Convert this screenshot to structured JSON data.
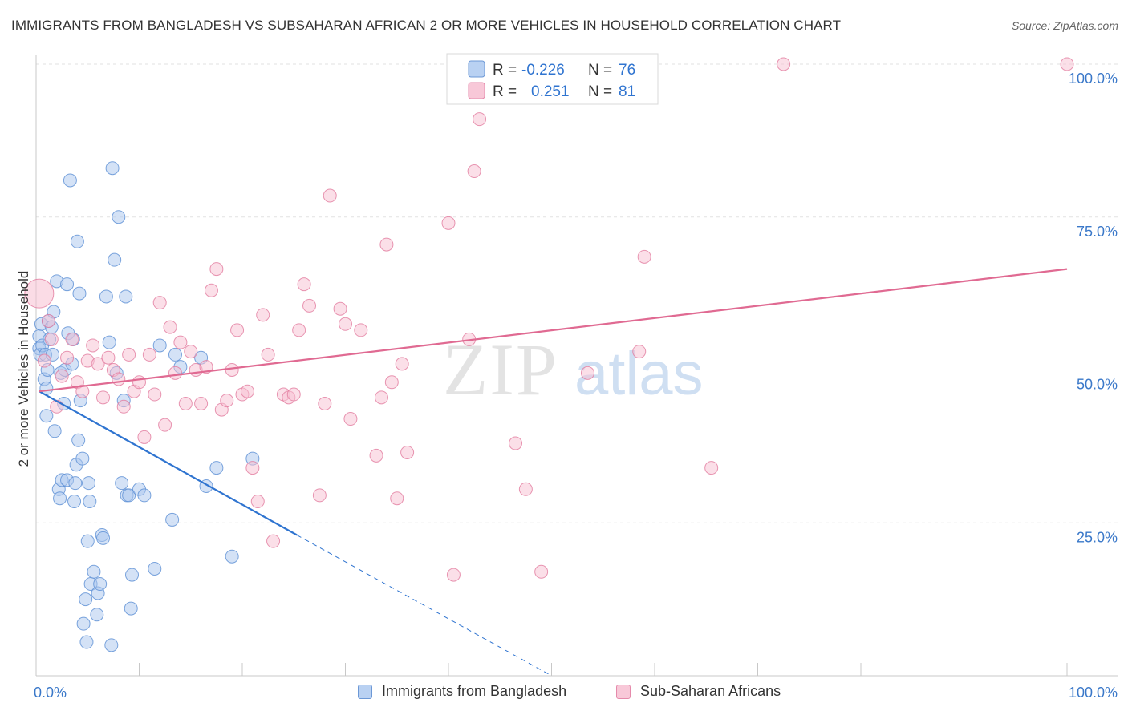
{
  "chart_data": {
    "type": "scatter",
    "title": "IMMIGRANTS FROM BANGLADESH VS SUBSAHARAN AFRICAN 2 OR MORE VEHICLES IN HOUSEHOLD CORRELATION CHART",
    "source": "Source: ZipAtlas.com",
    "xlabel": "",
    "ylabel": "2 or more Vehicles in Household",
    "xlim": [
      0,
      100
    ],
    "ylim": [
      0,
      102
    ],
    "x_tick_labels": {
      "left": "0.0%",
      "right": "100.0%"
    },
    "y_ticks": [
      {
        "value": 25,
        "label": "25.0%"
      },
      {
        "value": 50,
        "label": "50.0%"
      },
      {
        "value": 75,
        "label": "75.0%"
      },
      {
        "value": 100,
        "label": "100.0%"
      }
    ],
    "grid": true,
    "watermark": {
      "zip": "ZIP",
      "atlas": "atlas"
    },
    "legend": {
      "r_label": "R =",
      "n_label": "N =",
      "entries": [
        {
          "r": "-0.226",
          "n": "76"
        },
        {
          "r": "0.251",
          "n": "81"
        }
      ]
    },
    "series": [
      {
        "name": "Immigrants from Bangladesh",
        "color": "#a9c6ee",
        "edge": "#5b8fd4",
        "line_color": "#2f74d0",
        "trend": {
          "x0": 0.3,
          "y0": 46.5,
          "x1": 25.3,
          "y1": 23.0,
          "dash_to_x": 50,
          "dash_to_y": 0
        },
        "points": [
          [
            0.3,
            55.5
          ],
          [
            0.3,
            53.5
          ],
          [
            0.4,
            52.5
          ],
          [
            0.5,
            57.5
          ],
          [
            0.6,
            54.0
          ],
          [
            0.8,
            48.5
          ],
          [
            0.9,
            52.5
          ],
          [
            1.0,
            47.0
          ],
          [
            1.0,
            42.5
          ],
          [
            1.1,
            50.0
          ],
          [
            1.2,
            58.0
          ],
          [
            1.3,
            55.0
          ],
          [
            1.5,
            57.0
          ],
          [
            1.6,
            52.5
          ],
          [
            1.7,
            59.5
          ],
          [
            1.8,
            40.0
          ],
          [
            2.0,
            64.5
          ],
          [
            2.2,
            30.5
          ],
          [
            2.3,
            29.0
          ],
          [
            2.4,
            49.5
          ],
          [
            2.5,
            32.0
          ],
          [
            2.7,
            44.5
          ],
          [
            2.8,
            50.0
          ],
          [
            3.0,
            32.0
          ],
          [
            3.0,
            64.0
          ],
          [
            3.1,
            56.0
          ],
          [
            3.3,
            81.0
          ],
          [
            3.5,
            51.0
          ],
          [
            3.6,
            55.0
          ],
          [
            3.7,
            28.5
          ],
          [
            3.8,
            31.5
          ],
          [
            3.9,
            34.5
          ],
          [
            4.0,
            71.0
          ],
          [
            4.1,
            38.5
          ],
          [
            4.2,
            62.5
          ],
          [
            4.3,
            45.0
          ],
          [
            4.5,
            35.5
          ],
          [
            4.6,
            8.5
          ],
          [
            4.8,
            12.5
          ],
          [
            4.9,
            5.5
          ],
          [
            5.0,
            22.0
          ],
          [
            5.1,
            31.5
          ],
          [
            5.2,
            28.5
          ],
          [
            5.3,
            15.0
          ],
          [
            5.6,
            17.0
          ],
          [
            5.9,
            10.0
          ],
          [
            6.0,
            13.5
          ],
          [
            6.2,
            15.0
          ],
          [
            6.4,
            23.0
          ],
          [
            6.5,
            22.5
          ],
          [
            6.8,
            62.0
          ],
          [
            7.1,
            54.5
          ],
          [
            7.3,
            5.0
          ],
          [
            7.4,
            83.0
          ],
          [
            7.6,
            68.0
          ],
          [
            7.8,
            49.5
          ],
          [
            8.0,
            75.0
          ],
          [
            8.3,
            31.5
          ],
          [
            8.5,
            45.0
          ],
          [
            8.7,
            62.0
          ],
          [
            8.8,
            29.5
          ],
          [
            9.0,
            29.5
          ],
          [
            9.2,
            11.0
          ],
          [
            9.3,
            16.5
          ],
          [
            10.0,
            30.5
          ],
          [
            10.5,
            29.5
          ],
          [
            11.5,
            17.5
          ],
          [
            12.0,
            54.0
          ],
          [
            13.2,
            25.5
          ],
          [
            13.5,
            52.5
          ],
          [
            14.0,
            50.5
          ],
          [
            16.0,
            52.0
          ],
          [
            16.5,
            31.0
          ],
          [
            17.5,
            34.0
          ],
          [
            19.0,
            19.5
          ],
          [
            21.0,
            35.5
          ]
        ]
      },
      {
        "name": "Sub-Saharan Africans",
        "color": "#f7bfd1",
        "edge": "#e27c9f",
        "line_color": "#e06a92",
        "trend": {
          "x0": 0.3,
          "y0": 46.5,
          "x1": 100,
          "y1": 66.5
        },
        "points": [
          [
            0.3,
            62.5
          ],
          [
            1.2,
            58.0
          ],
          [
            1.5,
            55.0
          ],
          [
            2.0,
            44.0
          ],
          [
            2.5,
            49.0
          ],
          [
            3.0,
            52.0
          ],
          [
            3.5,
            55.0
          ],
          [
            4.0,
            48.0
          ],
          [
            4.5,
            46.5
          ],
          [
            5.0,
            51.5
          ],
          [
            5.5,
            54.0
          ],
          [
            6.0,
            51.0
          ],
          [
            6.5,
            45.5
          ],
          [
            7.0,
            52.0
          ],
          [
            7.5,
            50.0
          ],
          [
            8.0,
            48.5
          ],
          [
            8.5,
            44.0
          ],
          [
            9.0,
            52.5
          ],
          [
            9.5,
            46.5
          ],
          [
            10.0,
            48.0
          ],
          [
            10.5,
            39.0
          ],
          [
            11.0,
            52.5
          ],
          [
            11.5,
            46.0
          ],
          [
            12.0,
            61.0
          ],
          [
            12.5,
            41.0
          ],
          [
            13.0,
            57.0
          ],
          [
            13.5,
            49.5
          ],
          [
            14.0,
            54.5
          ],
          [
            14.5,
            44.5
          ],
          [
            15.0,
            53.0
          ],
          [
            15.5,
            50.0
          ],
          [
            16.0,
            44.5
          ],
          [
            16.5,
            50.5
          ],
          [
            17.0,
            63.0
          ],
          [
            17.5,
            66.5
          ],
          [
            18.0,
            43.5
          ],
          [
            18.5,
            45.0
          ],
          [
            19.0,
            50.0
          ],
          [
            19.5,
            56.5
          ],
          [
            20.0,
            46.0
          ],
          [
            20.5,
            46.5
          ],
          [
            21.0,
            34.0
          ],
          [
            21.5,
            28.5
          ],
          [
            22.0,
            59.0
          ],
          [
            22.5,
            52.5
          ],
          [
            23.0,
            22.0
          ],
          [
            24.0,
            46.0
          ],
          [
            24.5,
            45.5
          ],
          [
            25.0,
            46.0
          ],
          [
            25.5,
            56.5
          ],
          [
            26.0,
            64.0
          ],
          [
            26.5,
            60.5
          ],
          [
            27.5,
            29.5
          ],
          [
            28.0,
            44.5
          ],
          [
            28.5,
            78.5
          ],
          [
            29.5,
            60.0
          ],
          [
            30.0,
            57.5
          ],
          [
            30.5,
            42.0
          ],
          [
            31.5,
            56.5
          ],
          [
            33.0,
            36.0
          ],
          [
            33.5,
            45.5
          ],
          [
            34.0,
            70.5
          ],
          [
            34.5,
            48.0
          ],
          [
            35.0,
            29.0
          ],
          [
            35.5,
            51.0
          ],
          [
            36.0,
            36.5
          ],
          [
            40.0,
            74.0
          ],
          [
            40.5,
            16.5
          ],
          [
            42.0,
            55.0
          ],
          [
            42.5,
            82.5
          ],
          [
            43.0,
            91.0
          ],
          [
            46.5,
            38.0
          ],
          [
            47.5,
            30.5
          ],
          [
            49.0,
            17.0
          ],
          [
            53.5,
            49.5
          ],
          [
            58.5,
            53.0
          ],
          [
            59.0,
            68.5
          ],
          [
            65.5,
            34.0
          ],
          [
            72.5,
            100.0
          ],
          [
            100.0,
            100.0
          ],
          [
            0.8,
            51.5
          ]
        ]
      }
    ]
  }
}
